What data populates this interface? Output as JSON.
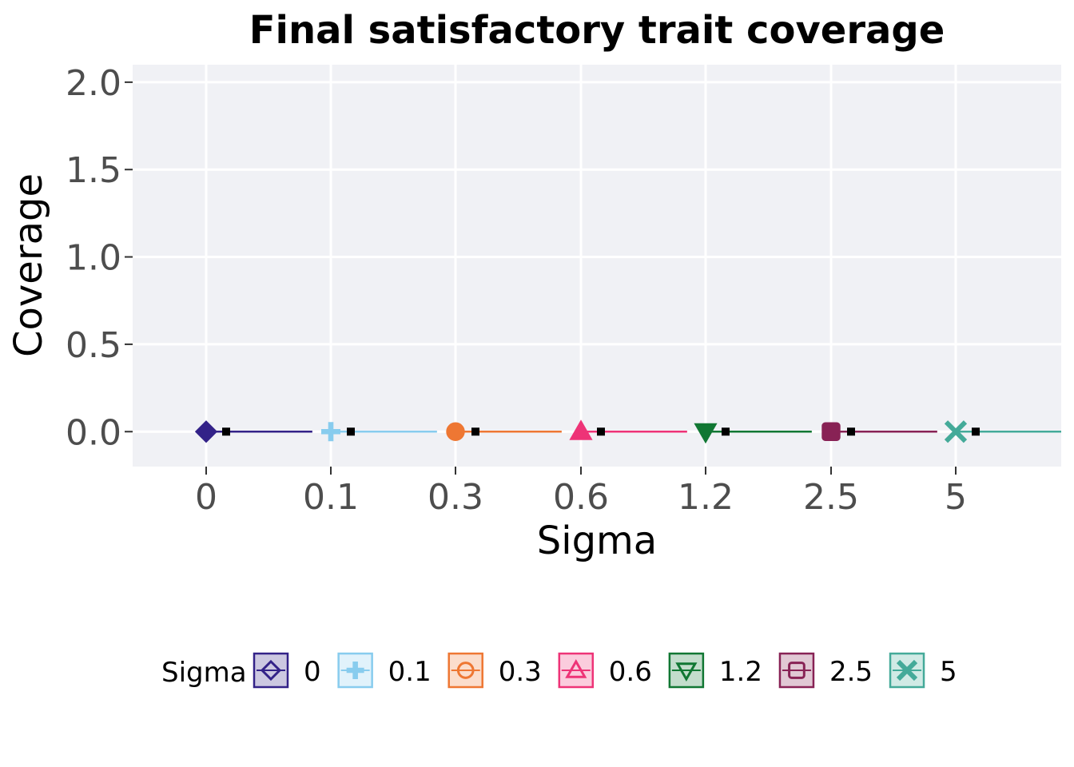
{
  "chart_data": {
    "type": "scatter",
    "title": "Final satisfactory trait coverage",
    "xlabel": "Sigma",
    "ylabel": "Coverage",
    "categories": [
      "0",
      "0.1",
      "0.3",
      "0.6",
      "1.2",
      "2.5",
      "5"
    ],
    "y_ticks": [
      "0.0",
      "0.5",
      "1.0",
      "1.5",
      "2.0"
    ],
    "ylim": [
      -0.2,
      2.1
    ],
    "grid": true,
    "legend_position": "bottom",
    "legend_title": "Sigma",
    "series": [
      {
        "name": "0",
        "color": "#332288",
        "marker": "diamond",
        "values": [
          0
        ]
      },
      {
        "name": "0.1",
        "color": "#88CCEE",
        "marker": "plus",
        "values": [
          0
        ]
      },
      {
        "name": "0.3",
        "color": "#EE7733",
        "marker": "circle",
        "values": [
          0
        ]
      },
      {
        "name": "0.6",
        "color": "#EE3377",
        "marker": "triangle-up",
        "values": [
          0
        ]
      },
      {
        "name": "1.2",
        "color": "#117733",
        "marker": "triangle-down",
        "values": [
          0
        ]
      },
      {
        "name": "2.5",
        "color": "#882255",
        "marker": "square",
        "values": [
          0
        ]
      },
      {
        "name": "5",
        "color": "#44AA99",
        "marker": "cross",
        "values": [
          0
        ]
      }
    ],
    "summary_points": [
      0,
      0,
      0,
      0,
      0,
      0,
      0
    ],
    "colors": {
      "panel": "#f0f1f5",
      "grid": "#ffffff",
      "summary_marker": "#000000"
    }
  }
}
